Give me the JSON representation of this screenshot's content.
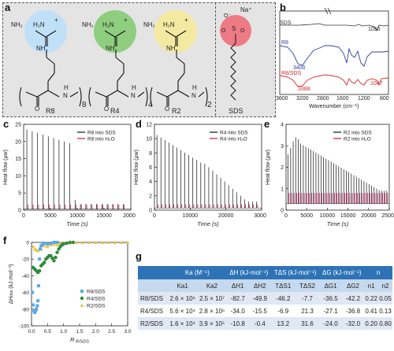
{
  "panel_labels": {
    "a": "a",
    "b": "b",
    "c": "c",
    "d": "d",
    "e": "e",
    "f": "f",
    "g": "g"
  },
  "structures": {
    "nh2": "NH₂",
    "h2n": "H₂N",
    "nh": "NH",
    "plus": "+",
    "o": "O",
    "h": "H",
    "n": "N",
    "r8_sub": "8",
    "r4_sub": "4",
    "r2_sub": "2",
    "r8": "R8",
    "r4": "R4",
    "r2": "R2",
    "sds": "SDS",
    "na": "Na⁺",
    "s": "S",
    "o_minus": "O⁻",
    "colors": {
      "r8": "#bfe0f7",
      "r4": "#8fce7f",
      "r2": "#f3e9a0",
      "sds": "#ee7a86"
    }
  },
  "chart_data": [
    {
      "type": "line",
      "panel": "b",
      "xlabel": "Wavenumber (cm⁻¹)",
      "x_ticks": [
        "3600",
        "3200",
        "2800",
        "1600",
        "1200",
        "800"
      ],
      "series": [
        {
          "name": "SDS",
          "color": "#333333"
        },
        {
          "name": "R8",
          "color": "#2f3f9e"
        },
        {
          "name": "R8/SDS",
          "color": "#d62728"
        }
      ],
      "annotations": [
        "1056",
        "3400",
        "3388",
        "1047"
      ]
    },
    {
      "type": "bar",
      "panel": "c",
      "xlabel": "Time (s)",
      "ylabel": "Heat flow (μw)",
      "xlim": [
        0,
        20000
      ],
      "ylim": [
        0,
        25
      ],
      "x_ticks": [
        "0",
        "5000",
        "10000",
        "15000",
        "20000"
      ],
      "y_ticks": [
        "0",
        "5",
        "10",
        "15",
        "20",
        "25"
      ],
      "series": [
        {
          "name": "R8 into SDS",
          "color": "#111111"
        },
        {
          "name": "R8 into H₂O",
          "color": "#c2185b"
        }
      ]
    },
    {
      "type": "bar",
      "panel": "d",
      "xlabel": "Time (s)",
      "ylabel": "Heat flow (μw)",
      "xlim": [
        0,
        30000
      ],
      "ylim": [
        0,
        12
      ],
      "x_ticks": [
        "0",
        "10000",
        "20000",
        "30000"
      ],
      "y_ticks": [
        "0",
        "2",
        "4",
        "6",
        "8",
        "10",
        "12"
      ],
      "series": [
        {
          "name": "R4 into SDS",
          "color": "#111111"
        },
        {
          "name": "R4 into H₂O",
          "color": "#c2185b"
        }
      ]
    },
    {
      "type": "bar",
      "panel": "e",
      "xlabel": "Time (s)",
      "ylabel": "Heat flow (μw)",
      "xlim": [
        0,
        25000
      ],
      "ylim": [
        0,
        4
      ],
      "x_ticks": [
        "0",
        "5000",
        "10000",
        "15000",
        "20000",
        "25000"
      ],
      "y_ticks": [
        "0",
        "1",
        "2",
        "3",
        "4"
      ],
      "series": [
        {
          "name": "R2 into SDS",
          "color": "#111111"
        },
        {
          "name": "R2 into H₂O",
          "color": "#c2185b"
        }
      ]
    },
    {
      "type": "scatter",
      "panel": "f",
      "xlabel": "R R/SDS",
      "ylabel": "ΔH obs (kJ·mol⁻¹)",
      "xlim": [
        0,
        3.0
      ],
      "ylim": [
        -100,
        0
      ],
      "x_ticks": [
        "0.0",
        "0.5",
        "1.0",
        "1.5",
        "2.0",
        "2.5",
        "3.0"
      ],
      "y_ticks": [
        "0",
        "-20",
        "-40",
        "-60",
        "-80",
        "-100"
      ],
      "series": [
        {
          "name": "R8/SDS",
          "color": "#5aa9e6"
        },
        {
          "name": "R4/SDS",
          "color": "#2e8b3a"
        },
        {
          "name": "R2/SDS",
          "color": "#e8c84a"
        }
      ]
    }
  ],
  "ylabel_f_main": "ΔH",
  "ylabel_f_sub": "obs",
  "ylabel_f_unit": "(kJ·mol⁻¹)",
  "xlabel_f_main": "R",
  "xlabel_f_sub": "R/SDS",
  "time_label": "Time (s)",
  "table": {
    "header": [
      "",
      "Ka (M⁻¹)",
      "ΔH (kJ·mol⁻¹)",
      "TΔS (kJ·mol⁻¹)",
      "ΔG (kJ·mol⁻¹)",
      "n"
    ],
    "sub": [
      "",
      "Ka1",
      "Ka2",
      "ΔH1",
      "ΔH2",
      "TΔS1",
      "TΔS2",
      "ΔG1",
      "ΔG2",
      "n1",
      "n2"
    ],
    "rows": [
      [
        "R8/SDS",
        "2.6 × 10⁶",
        "2.5 × 10⁷",
        "-82.7",
        "-49.9",
        "-46.2",
        "-7.7",
        "-36.5",
        "-42.2",
        "0.22",
        "0.05"
      ],
      [
        "R4/SDS",
        "5.6 × 10⁴",
        "2.8 × 10⁶",
        "-34.0",
        "-15.5",
        "-6.9",
        "21.3",
        "-27.1",
        "-36.8",
        "0.41",
        "0.13"
      ],
      [
        "R2/SDS",
        "1.6 × 10⁴",
        "3.9 × 10⁵",
        "-10.8",
        "-0.4",
        "13.2",
        "31.6",
        "-24.0",
        "-32.0",
        "0.20",
        "0.80"
      ]
    ]
  }
}
